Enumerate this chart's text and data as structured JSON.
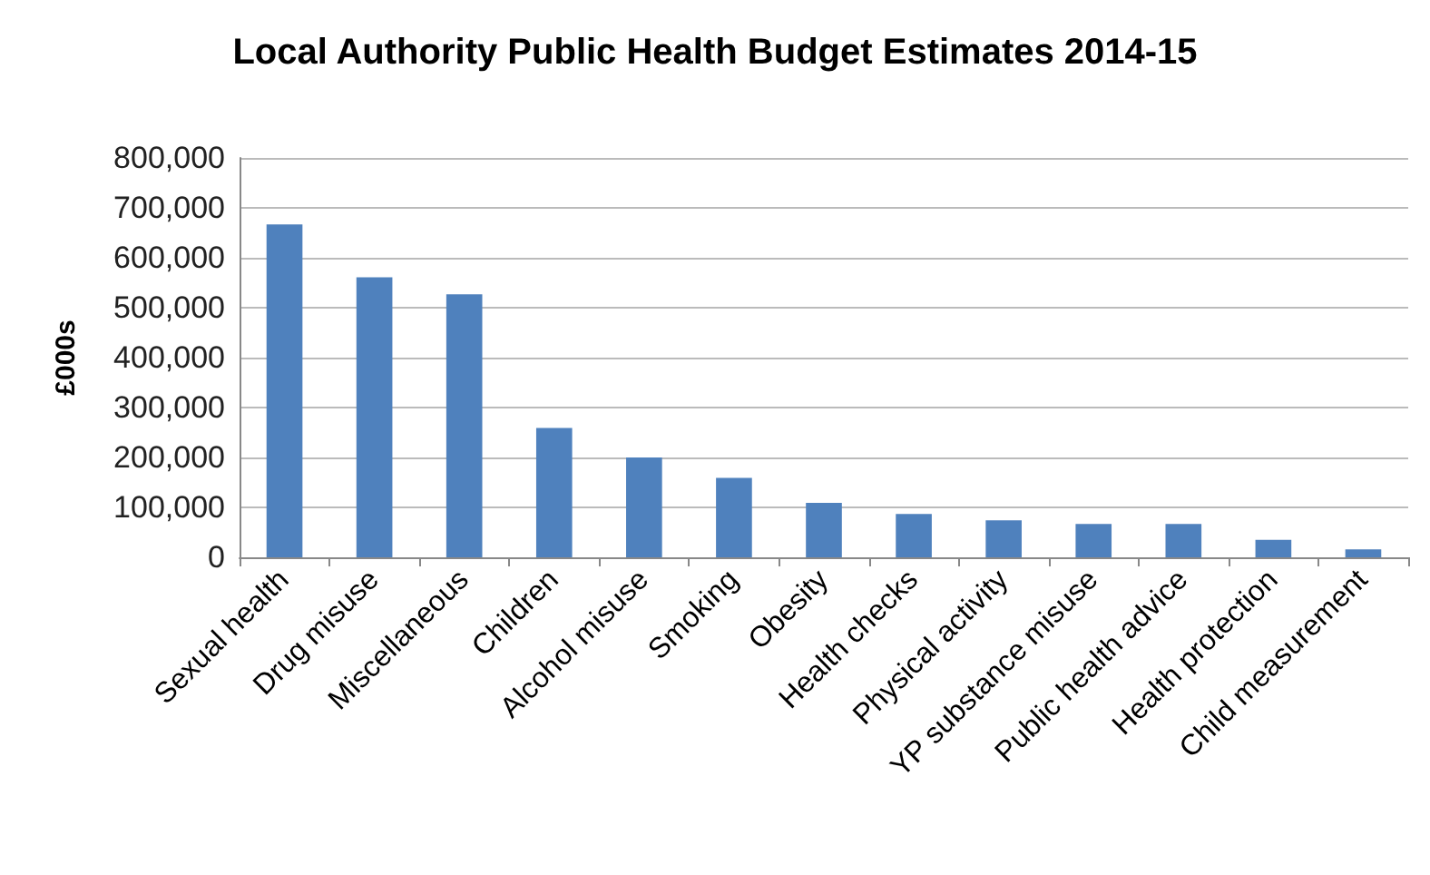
{
  "chart_data": {
    "type": "bar",
    "title": "Local Authority Public Health Budget Estimates 2014-15",
    "ylabel": "£000s",
    "categories": [
      "Sexual health",
      "Drug misuse",
      "Miscellaneous",
      "Children",
      "Alcohol misuse",
      "Smoking",
      "Obesity",
      "Health checks",
      "Physical activity",
      "YP substance misuse",
      "Public health advice",
      "Health protection",
      "Child measurement"
    ],
    "values": [
      667000,
      561000,
      527000,
      259000,
      200000,
      159000,
      109000,
      87000,
      74000,
      67000,
      67000,
      35000,
      16000
    ],
    "color": "#4f81bd",
    "ylim": [
      0,
      800000
    ],
    "yticks": [
      0,
      {
        "value": 100000,
        "label": "100,000"
      },
      {
        "value": 200000,
        "label": "200,000"
      },
      {
        "value": 300000,
        "label": "300,000"
      },
      {
        "value": 400000,
        "label": "400,000"
      },
      {
        "value": 500000,
        "label": "500,000"
      },
      {
        "value": 600000,
        "label": "600,000"
      },
      {
        "value": 700000,
        "label": "700,000"
      },
      {
        "value": 800000,
        "label": "800,000"
      }
    ],
    "grid": "y"
  }
}
